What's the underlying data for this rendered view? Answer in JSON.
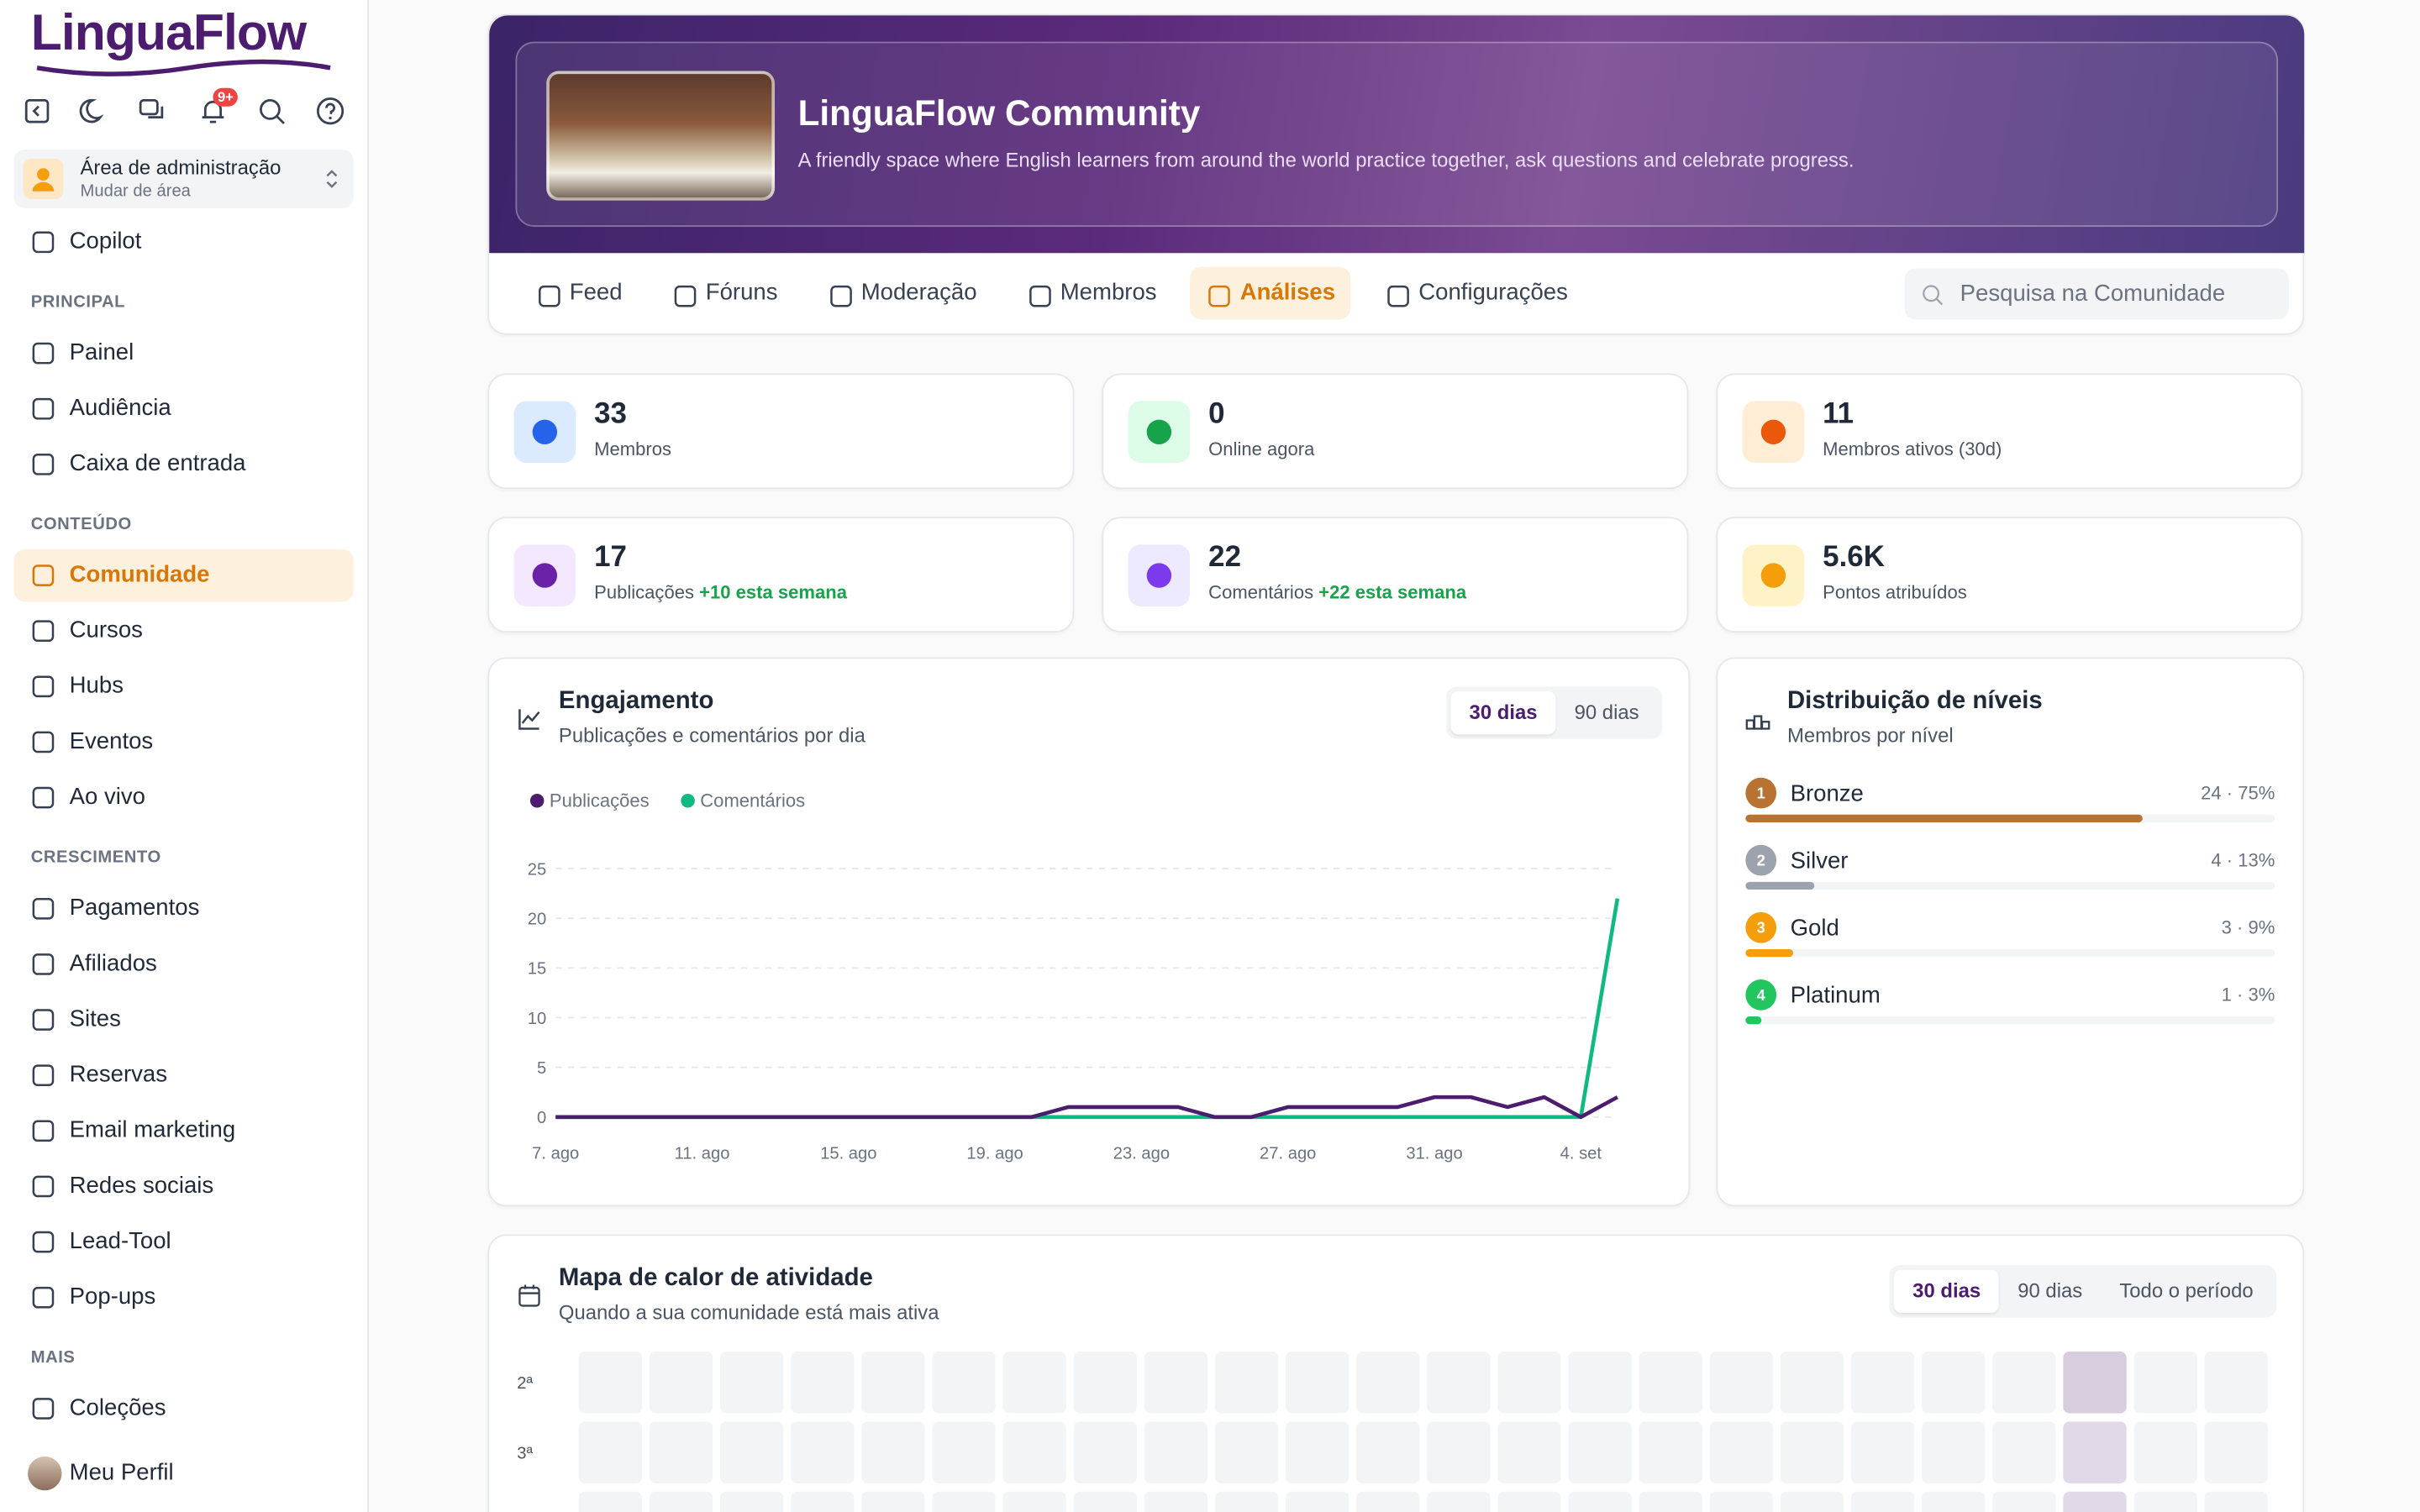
{
  "sidebar": {
    "logo": "LinguaFlow",
    "notification_badge": "9+",
    "area": {
      "title": "Área de administração",
      "subtitle": "Mudar de área"
    },
    "copilot": "Copilot",
    "sections": [
      {
        "title": "PRINCIPAL",
        "items": [
          "Painel",
          "Audiência",
          "Caixa de entrada"
        ]
      },
      {
        "title": "CONTEÚDO",
        "items": [
          "Comunidade",
          "Cursos",
          "Hubs",
          "Eventos",
          "Ao vivo"
        ]
      },
      {
        "title": "CRESCIMENTO",
        "items": [
          "Pagamentos",
          "Afiliados",
          "Sites",
          "Reservas",
          "Email marketing",
          "Redes sociais",
          "Lead-Tool",
          "Pop-ups"
        ]
      },
      {
        "title": "MAIS",
        "items": [
          "Coleções"
        ]
      }
    ],
    "active": "Comunidade",
    "profile": "Meu Perfil"
  },
  "banner": {
    "title": "LinguaFlow Community",
    "description": "A friendly space where English learners from around the world practice together, ask questions and celebrate progress."
  },
  "tabs": {
    "items": [
      "Feed",
      "Fóruns",
      "Moderação",
      "Membros",
      "Análises",
      "Configurações"
    ],
    "active": "Análises",
    "search_placeholder": "Pesquisa na Comunidade"
  },
  "stats": [
    {
      "value": 33,
      "label": "Membros"
    },
    {
      "value": 0,
      "label": "Online agora"
    },
    {
      "value": 11,
      "label": "Membros ativos (30d)"
    },
    {
      "value": 17,
      "label": "Publicações",
      "delta": "+10 esta semana"
    },
    {
      "value": 22,
      "label": "Comentários",
      "delta": "+22 esta semana"
    },
    {
      "value": "5.6K",
      "label": "Pontos atribuídos"
    }
  ],
  "chart_data": [
    {
      "type": "line",
      "title": "Engajamento",
      "subtitle": "Publicações e comentários por dia",
      "ranges": [
        "30 dias",
        "90 dias"
      ],
      "active_range": "30 dias",
      "categories": [
        "7. ago",
        null,
        null,
        null,
        "11. ago",
        null,
        null,
        null,
        "15. ago",
        null,
        null,
        null,
        "19. ago",
        null,
        null,
        null,
        "23. ago",
        null,
        null,
        null,
        "27. ago",
        null,
        null,
        null,
        "31. ago",
        null,
        null,
        null,
        "4. set",
        null
      ],
      "series": [
        {
          "name": "Publicações",
          "color": "#4c1d6e",
          "values": [
            0,
            0,
            0,
            0,
            0,
            0,
            0,
            0,
            0,
            0,
            0,
            0,
            0,
            0,
            1,
            1,
            1,
            1,
            0,
            0,
            1,
            1,
            1,
            1,
            2,
            2,
            1,
            2,
            0,
            2
          ]
        },
        {
          "name": "Comentários",
          "color": "#10b981",
          "values": [
            0,
            0,
            0,
            0,
            0,
            0,
            0,
            0,
            0,
            0,
            0,
            0,
            0,
            0,
            0,
            0,
            0,
            0,
            0,
            0,
            0,
            0,
            0,
            0,
            0,
            0,
            0,
            0,
            0,
            22
          ]
        }
      ],
      "ylim": [
        0,
        25
      ],
      "yticks": [
        0,
        5,
        10,
        15,
        20,
        25
      ],
      "grid": true
    },
    {
      "type": "bar",
      "orientation": "horizontal",
      "title": "Distribuição de níveis",
      "subtitle": "Membros por nível",
      "categories": [
        "Bronze",
        "Silver",
        "Gold",
        "Platinum"
      ],
      "ranks": [
        1,
        2,
        3,
        4
      ],
      "colors": [
        "#b87333",
        "#9ca3af",
        "#f59e0b",
        "#22c55e"
      ],
      "values": [
        75,
        13,
        9,
        3
      ],
      "value_labels": [
        "24 · 75%",
        "4 · 13%",
        "3 · 9%",
        "1 · 3%"
      ],
      "xlim": [
        0,
        100
      ]
    },
    {
      "type": "heatmap",
      "title": "Mapa de calor de atividade",
      "subtitle": "Quando a sua comunidade está mais ativa",
      "ranges": [
        "30 dias",
        "90 dias",
        "Todo o período"
      ],
      "active_range": "30 dias",
      "rows": [
        "2ª",
        "3ª",
        null
      ],
      "color": "#4c1d6e",
      "values": [
        [
          0,
          0,
          0,
          0,
          0,
          0,
          0,
          0,
          0,
          0,
          0,
          0,
          0,
          0,
          0,
          0,
          0,
          0,
          0,
          0,
          0,
          2,
          0,
          0
        ],
        [
          0,
          0,
          0,
          0,
          0,
          0,
          0,
          0,
          0,
          0,
          0,
          0,
          0,
          0,
          0,
          0,
          0,
          0,
          0,
          0,
          0,
          1,
          0,
          0
        ],
        [
          0,
          0,
          0,
          0,
          0,
          0,
          0,
          0,
          0,
          0,
          0,
          0,
          0,
          0,
          0,
          0,
          0,
          0,
          0,
          0,
          0,
          1,
          0,
          0
        ]
      ]
    }
  ]
}
